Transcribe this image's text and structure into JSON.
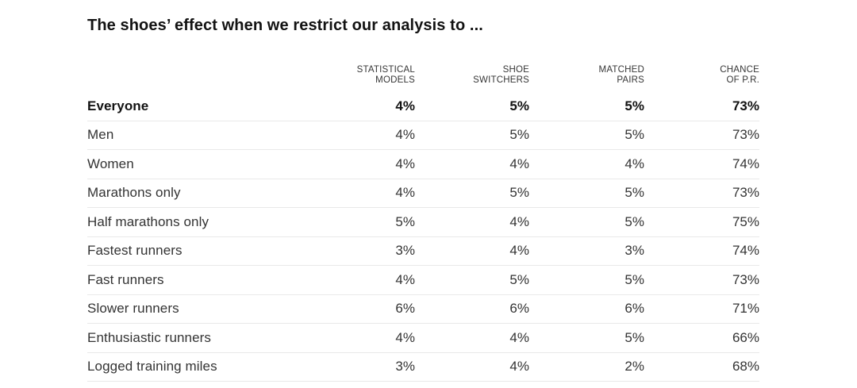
{
  "title": "The shoes’ effect when we restrict our analysis to ...",
  "header": {
    "columns": [
      {
        "line1": "STATISTICAL",
        "line2": "MODELS"
      },
      {
        "line1": "SHOE",
        "line2": "SWITCHERS"
      },
      {
        "line1": "MATCHED",
        "line2": "PAIRS"
      },
      {
        "line1": "CHANCE",
        "line2": "OF P.R."
      }
    ]
  },
  "chart_data": {
    "type": "table",
    "title": "The shoes’ effect when we restrict our analysis to ...",
    "columns": [
      "Statistical models",
      "Shoe switchers",
      "Matched pairs",
      "Chance of P.R."
    ],
    "rows": [
      {
        "label": "Everyone",
        "values": [
          "4%",
          "5%",
          "5%",
          "73%"
        ],
        "emphasis": true
      },
      {
        "label": "Men",
        "values": [
          "4%",
          "5%",
          "5%",
          "73%"
        ],
        "emphasis": false
      },
      {
        "label": "Women",
        "values": [
          "4%",
          "4%",
          "4%",
          "74%"
        ],
        "emphasis": false
      },
      {
        "label": "Marathons only",
        "values": [
          "4%",
          "5%",
          "5%",
          "73%"
        ],
        "emphasis": false
      },
      {
        "label": "Half marathons only",
        "values": [
          "5%",
          "4%",
          "5%",
          "75%"
        ],
        "emphasis": false
      },
      {
        "label": "Fastest runners",
        "values": [
          "3%",
          "4%",
          "3%",
          "74%"
        ],
        "emphasis": false
      },
      {
        "label": "Fast runners",
        "values": [
          "4%",
          "5%",
          "5%",
          "73%"
        ],
        "emphasis": false
      },
      {
        "label": "Slower runners",
        "values": [
          "6%",
          "6%",
          "6%",
          "71%"
        ],
        "emphasis": false
      },
      {
        "label": "Enthusiastic runners",
        "values": [
          "4%",
          "4%",
          "5%",
          "66%"
        ],
        "emphasis": false
      },
      {
        "label": "Logged training miles",
        "values": [
          "3%",
          "4%",
          "2%",
          "68%"
        ],
        "emphasis": false
      }
    ]
  },
  "colors": {
    "text_primary": "#121212",
    "text_secondary": "#333333",
    "divider": "#e9e9e9",
    "background": "#ffffff"
  }
}
